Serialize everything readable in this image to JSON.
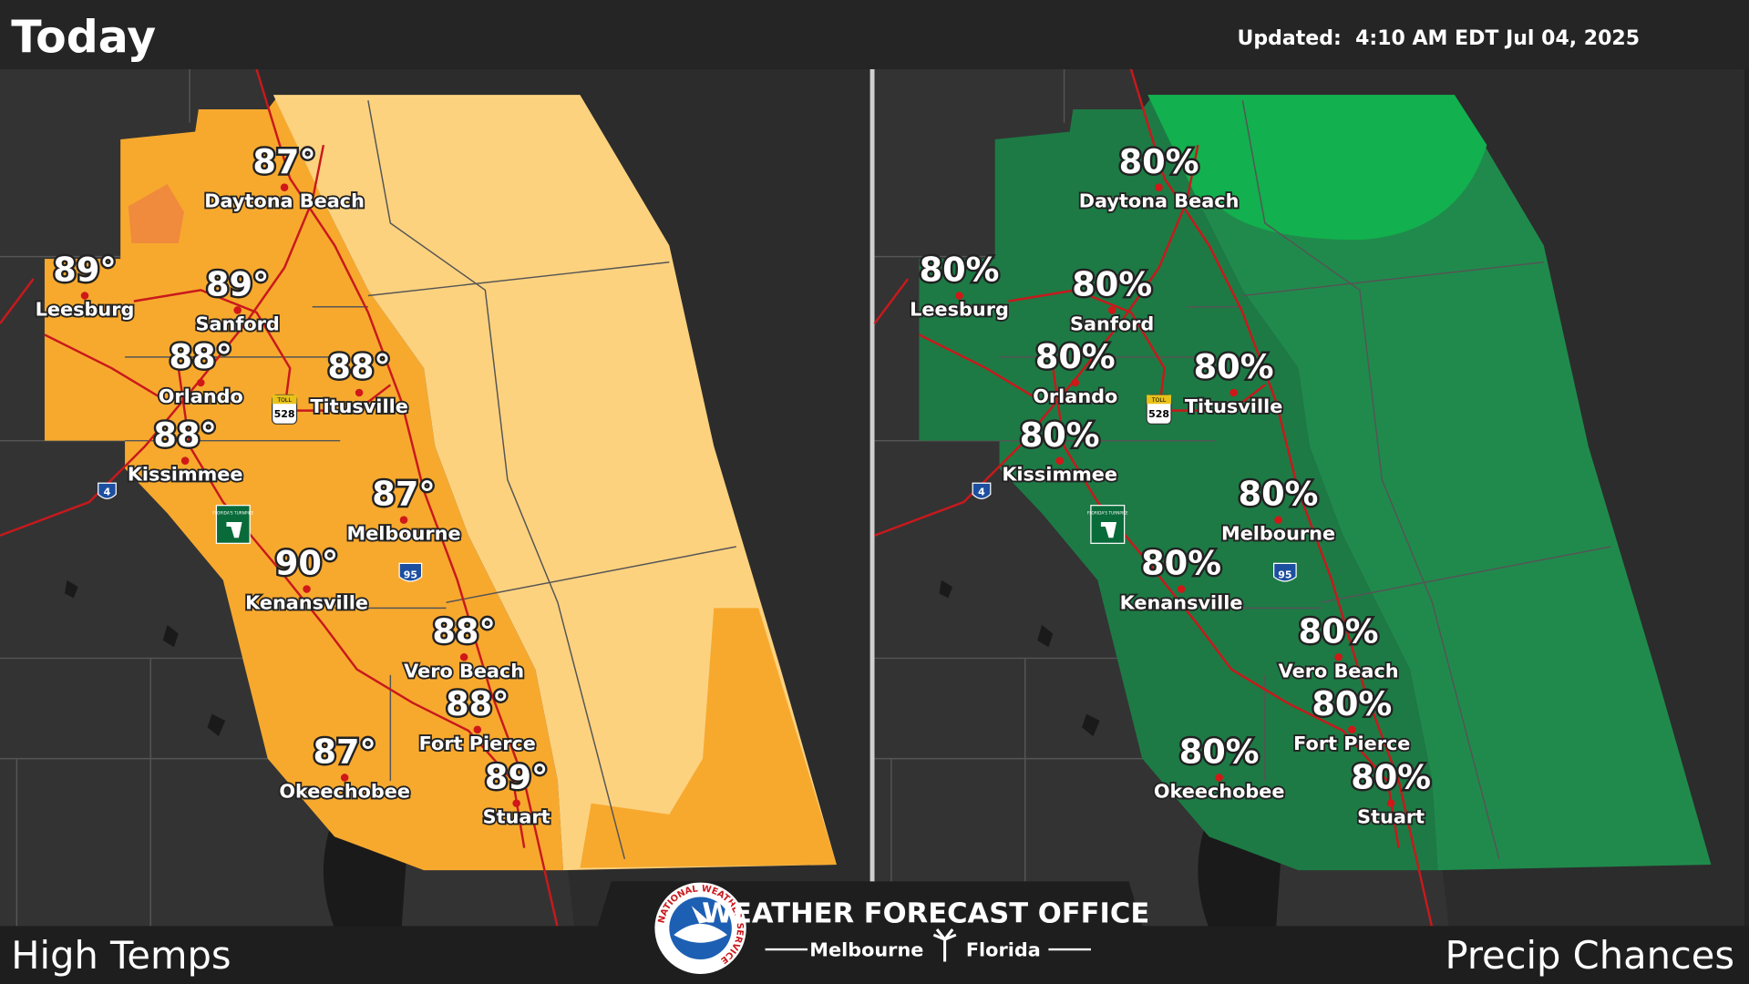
{
  "header": {
    "title": "Today",
    "updated": "Updated:  4:10 AM EDT Jul 04, 2025"
  },
  "panels": [
    {
      "label": "High Temps",
      "cities": [
        {
          "name": "Daytona Beach",
          "value": "87°"
        },
        {
          "name": "Leesburg",
          "value": "89°"
        },
        {
          "name": "Sanford",
          "value": "89°"
        },
        {
          "name": "Orlando",
          "value": "88°"
        },
        {
          "name": "Titusville",
          "value": "88°"
        },
        {
          "name": "Kissimmee",
          "value": "88°"
        },
        {
          "name": "Melbourne",
          "value": "87°"
        },
        {
          "name": "Kenansville",
          "value": "90°"
        },
        {
          "name": "Vero Beach",
          "value": "88°"
        },
        {
          "name": "Fort Pierce",
          "value": "88°"
        },
        {
          "name": "Okeechobee",
          "value": "87°"
        },
        {
          "name": "Stuart",
          "value": "89°"
        }
      ]
    },
    {
      "label": "Precip Chances",
      "cities": [
        {
          "name": "Daytona Beach",
          "value": "80%"
        },
        {
          "name": "Leesburg",
          "value": "80%"
        },
        {
          "name": "Sanford",
          "value": "80%"
        },
        {
          "name": "Orlando",
          "value": "80%"
        },
        {
          "name": "Titusville",
          "value": "80%"
        },
        {
          "name": "Kissimmee",
          "value": "80%"
        },
        {
          "name": "Melbourne",
          "value": "80%"
        },
        {
          "name": "Kenansville",
          "value": "80%"
        },
        {
          "name": "Vero Beach",
          "value": "80%"
        },
        {
          "name": "Fort Pierce",
          "value": "80%"
        },
        {
          "name": "Okeechobee",
          "value": "80%"
        },
        {
          "name": "Stuart",
          "value": "80%"
        }
      ]
    }
  ],
  "shields": {
    "toll": "TOLL",
    "sr528": "528",
    "i4": "4",
    "i95": "95",
    "turnpike": "FLORIDA'S TURNPIKE"
  },
  "footer": {
    "ring": "NATIONAL WEATHER SERVICE",
    "office": "WEATHER FORECAST OFFICE",
    "city": "Melbourne",
    "state": "Florida"
  }
}
